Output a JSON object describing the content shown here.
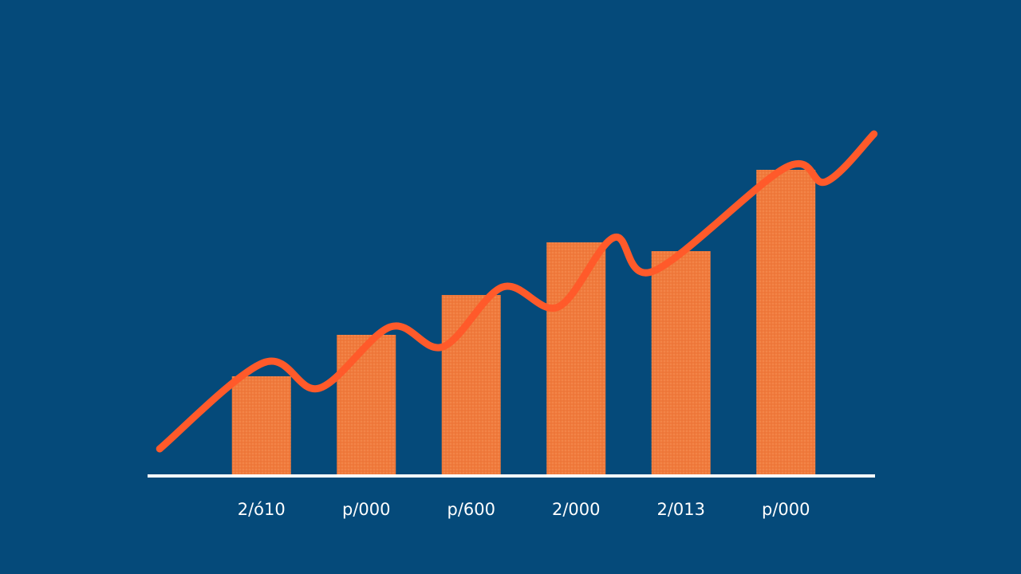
{
  "chart_data": {
    "type": "bar",
    "categories": [
      "2/ó10",
      "p/000",
      "p/600",
      "2/000",
      "2/013",
      "p/000"
    ],
    "values": [
      125,
      177,
      227,
      293,
      282,
      384
    ],
    "color": "#f07a3c",
    "line": {
      "x": [
        -0.97,
        0.02,
        0.55,
        1.23,
        1.73,
        2.3,
        2.83,
        3.36,
        3.74,
        5.0,
        5.38,
        5.84
      ],
      "values": [
        34,
        142,
        110,
        187,
        162,
        237,
        212,
        299,
        257,
        387,
        369,
        429
      ],
      "color": "#ff5a2a"
    },
    "xlim": [
      -0.5,
      5.5
    ],
    "ylim": [
      0,
      477
    ]
  }
}
